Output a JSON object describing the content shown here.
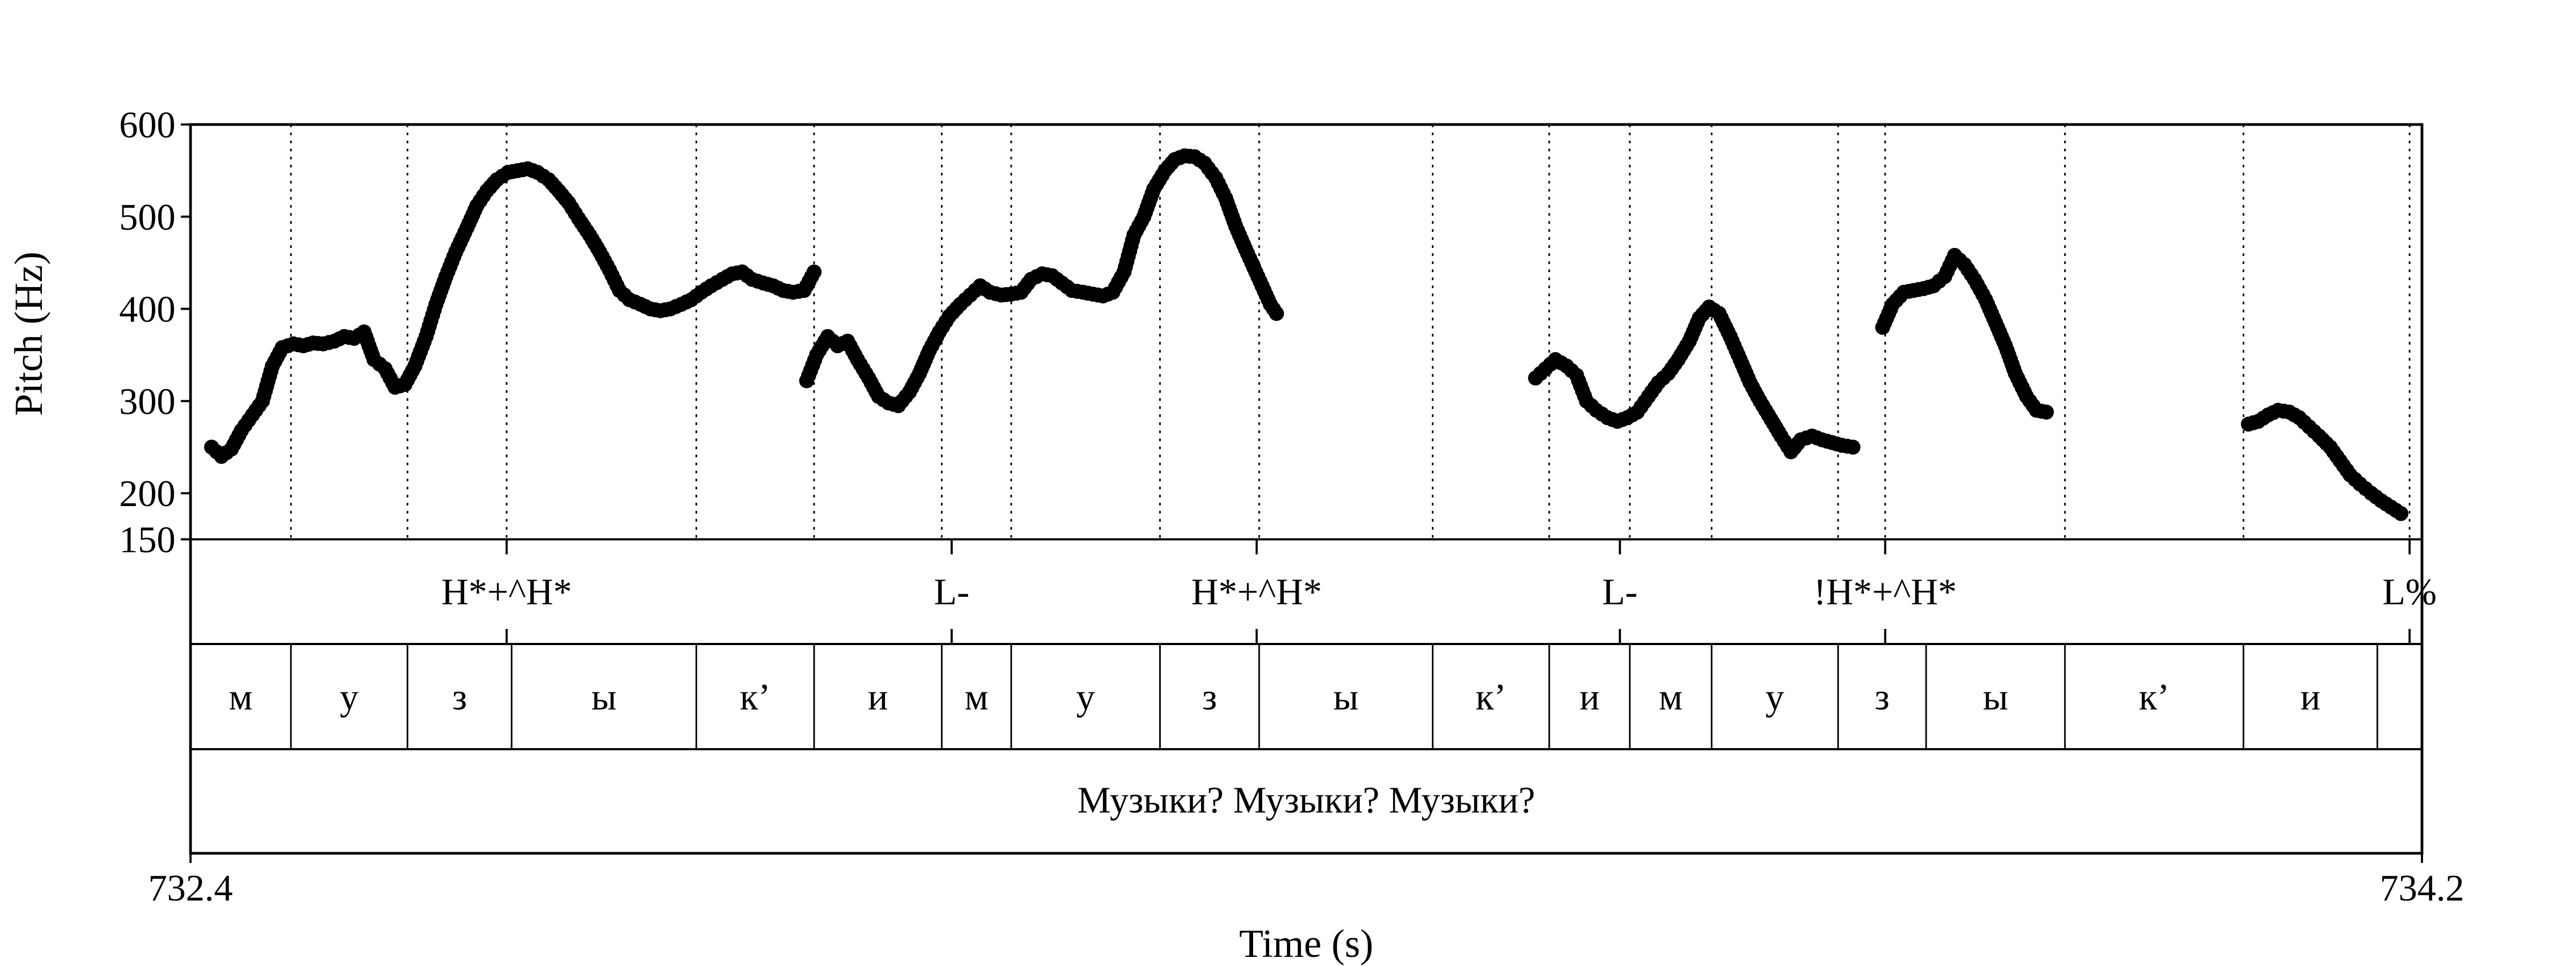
{
  "chart_data": {
    "type": "scatter",
    "xlabel": "Time (s)",
    "ylabel": "Pitch (Hz)",
    "xlim": [
      732.4,
      734.2
    ],
    "ylim": [
      150,
      600
    ],
    "x_ticks": [
      "732.4",
      "734.2"
    ],
    "y_ticks": [
      150,
      200,
      300,
      400,
      500,
      600
    ],
    "y_tick_labels": [
      "150",
      "200",
      "300",
      "400",
      "500",
      "600"
    ],
    "grid_vertical_dotted": true,
    "marker_color": "#000000",
    "pitch_contours": [
      {
        "x": [
          732.417,
          732.425,
          732.433,
          732.441,
          732.45,
          732.458,
          732.466,
          732.474,
          732.483,
          732.491,
          732.499,
          732.507,
          732.516,
          732.524,
          732.532,
          732.54,
          732.548,
          732.557,
          732.565,
          732.573,
          732.581,
          732.59,
          732.598,
          732.606,
          732.614,
          732.623,
          732.631,
          732.639,
          732.647,
          732.656,
          732.664,
          732.672,
          732.68,
          732.689,
          732.697,
          732.705,
          732.713,
          732.722,
          732.73,
          732.738,
          732.746,
          732.754,
          732.763,
          732.771,
          732.779,
          732.787,
          732.796,
          732.804,
          732.812,
          732.82,
          732.829,
          732.837,
          732.845,
          732.853,
          732.862,
          732.87,
          732.878,
          732.886,
          732.895,
          732.903
        ],
        "y": [
          250,
          240,
          248,
          268,
          285,
          300,
          338,
          358,
          362,
          360,
          363,
          362,
          365,
          370,
          368,
          375,
          345,
          335,
          315,
          318,
          338,
          370,
          405,
          435,
          462,
          488,
          512,
          528,
          540,
          548,
          550,
          552,
          548,
          540,
          528,
          515,
          498,
          480,
          462,
          442,
          420,
          410,
          405,
          400,
          398,
          400,
          405,
          410,
          418,
          425,
          432,
          438,
          440,
          432,
          428,
          425,
          420,
          418,
          420,
          440
        ]
      },
      {
        "x": [
          732.897,
          732.905,
          732.914,
          732.922,
          732.93,
          732.938,
          732.947,
          732.955,
          732.963,
          732.971,
          732.98,
          732.988,
          732.996,
          733.004,
          733.012,
          733.021,
          733.029,
          733.037,
          733.045,
          733.054,
          733.062,
          733.07,
          733.078,
          733.087,
          733.095,
          733.103,
          733.111,
          733.12,
          733.128,
          733.136,
          733.144,
          733.153,
          733.161,
          733.169,
          733.177,
          733.186,
          733.194,
          733.202,
          733.21,
          733.218,
          733.227,
          733.235,
          733.243,
          733.251
        ],
        "y": [
          322,
          350,
          370,
          360,
          365,
          345,
          325,
          305,
          298,
          295,
          310,
          330,
          355,
          375,
          392,
          405,
          415,
          425,
          418,
          415,
          416,
          418,
          432,
          438,
          436,
          428,
          420,
          418,
          416,
          414,
          418,
          440,
          480,
          500,
          530,
          550,
          562,
          566,
          565,
          558,
          542,
          520,
          490,
          465
        ]
      },
      {
        "x": [
          733.251,
          733.256,
          733.261,
          733.266,
          733.271,
          733.276
        ],
        "y": [
          465,
          450,
          435,
          420,
          405,
          395
        ]
      },
      {
        "x": [
          733.485,
          733.493,
          733.501,
          733.51,
          733.518,
          733.526,
          733.534,
          733.543,
          733.551,
          733.559,
          733.567,
          733.576,
          733.584,
          733.592,
          733.6,
          733.609,
          733.617,
          733.625,
          733.633,
          733.642,
          733.65,
          733.658,
          733.666,
          733.675,
          733.683,
          733.691,
          733.699,
          733.708,
          733.716,
          733.724,
          733.732,
          733.741
        ],
        "y": [
          325,
          335,
          345,
          338,
          328,
          300,
          290,
          282,
          278,
          282,
          288,
          305,
          320,
          330,
          345,
          365,
          390,
          402,
          395,
          370,
          345,
          320,
          300,
          280,
          262,
          245,
          258,
          262,
          258,
          255,
          252,
          250
        ]
      },
      {
        "x": [
          733.765,
          733.773,
          733.782,
          733.79,
          733.798,
          733.806,
          733.815,
          733.823,
          733.831,
          733.839,
          733.848,
          733.856,
          733.864,
          733.872,
          733.881,
          733.889,
          733.897
        ],
        "y": [
          380,
          405,
          418,
          420,
          422,
          425,
          435,
          458,
          448,
          432,
          410,
          385,
          360,
          330,
          305,
          290,
          288
        ]
      },
      {
        "x": [
          734.06,
          734.068,
          734.076,
          734.084,
          734.093,
          734.101,
          734.109,
          734.117,
          734.126,
          734.134,
          734.142,
          734.15,
          734.159,
          734.167,
          734.175,
          734.183
        ],
        "y": [
          275,
          278,
          285,
          290,
          288,
          282,
          272,
          262,
          250,
          235,
          220,
          210,
          200,
          192,
          185,
          178
        ]
      }
    ],
    "tiers": [
      {
        "name": "tones",
        "points": [
          {
            "t": 732.655,
            "label": "H*+^H*"
          },
          {
            "t": 733.014,
            "label": "L-"
          },
          {
            "t": 733.26,
            "label": "H*+^H*"
          },
          {
            "t": 733.553,
            "label": "L-"
          },
          {
            "t": 733.767,
            "label": "!H*+^H*"
          },
          {
            "t": 734.19,
            "label": "L%"
          }
        ]
      },
      {
        "name": "segments",
        "boundaries": [
          732.4,
          732.481,
          732.575,
          732.659,
          732.808,
          732.903,
          733.006,
          733.062,
          733.182,
          733.262,
          733.402,
          733.496,
          733.561,
          733.627,
          733.729,
          733.8,
          733.912,
          734.056,
          734.164,
          734.2
        ],
        "labels": [
          "м",
          "у",
          "з",
          "ы",
          "к’",
          "и",
          "м",
          "у",
          "з",
          "ы",
          "к’",
          "и",
          "м",
          "у",
          "з",
          "ы",
          "к’",
          "и",
          ""
        ]
      },
      {
        "name": "words",
        "boundaries": [
          732.4,
          734.2
        ],
        "labels": [
          "Музыки? Музыки? Музыки?"
        ]
      }
    ],
    "dotted_lines_at": [
      732.481,
      732.575,
      732.655,
      732.808,
      732.903,
      733.006,
      733.062,
      733.182,
      733.262,
      733.402,
      733.496,
      733.561,
      733.627,
      733.729,
      733.767,
      733.912,
      734.056,
      734.19
    ]
  }
}
